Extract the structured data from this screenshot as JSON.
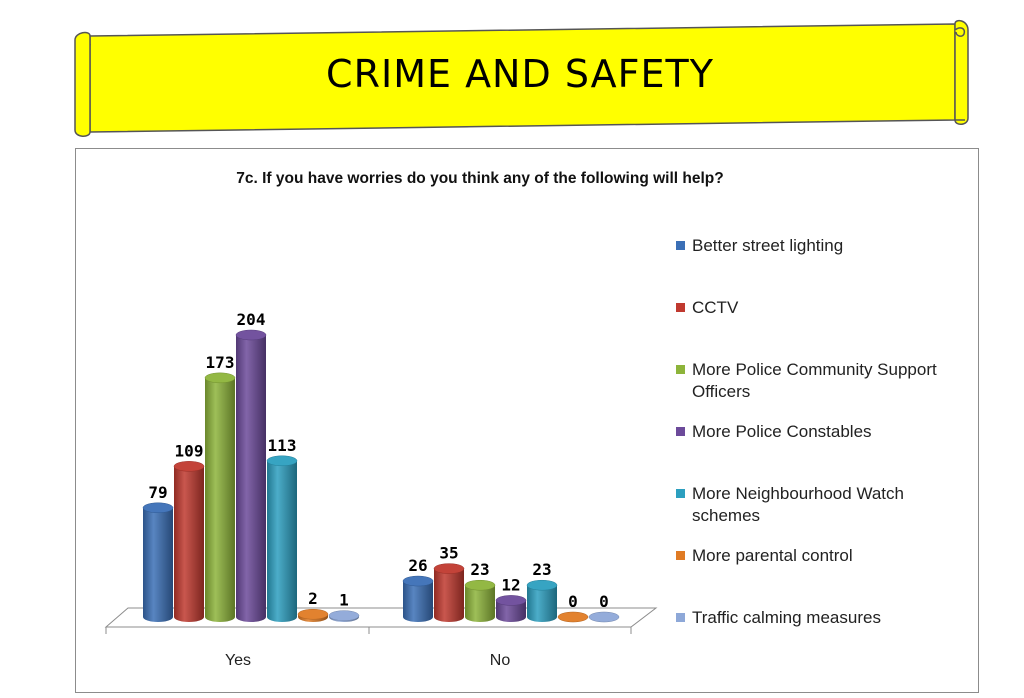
{
  "banner": {
    "title": "CRIME AND SAFETY"
  },
  "chart_data": {
    "type": "bar",
    "title": "7c. If you have worries do you think any of the following will help?",
    "categories": [
      "Yes",
      "No"
    ],
    "series": [
      {
        "name": "Better street lighting",
        "values": [
          79,
          26
        ],
        "color": "#3b6fb6"
      },
      {
        "name": "CCTV",
        "values": [
          109,
          35
        ],
        "color": "#c0392f"
      },
      {
        "name": "More Police Community Support Officers",
        "values": [
          173,
          23
        ],
        "color": "#8db43a"
      },
      {
        "name": "More Police Constables",
        "values": [
          204,
          12
        ],
        "color": "#6c4a9a"
      },
      {
        "name": "More Neighbourhood Watch schemes",
        "values": [
          113,
          23
        ],
        "color": "#2c9fbf"
      },
      {
        "name": "More parental control",
        "values": [
          2,
          0
        ],
        "color": "#e07b24"
      },
      {
        "name": "Traffic calming measures",
        "values": [
          1,
          0
        ],
        "color": "#8ea8d8"
      }
    ],
    "ylim": [
      0,
      204
    ],
    "legend": "right",
    "grid": false,
    "style": "3d-cylinder"
  }
}
